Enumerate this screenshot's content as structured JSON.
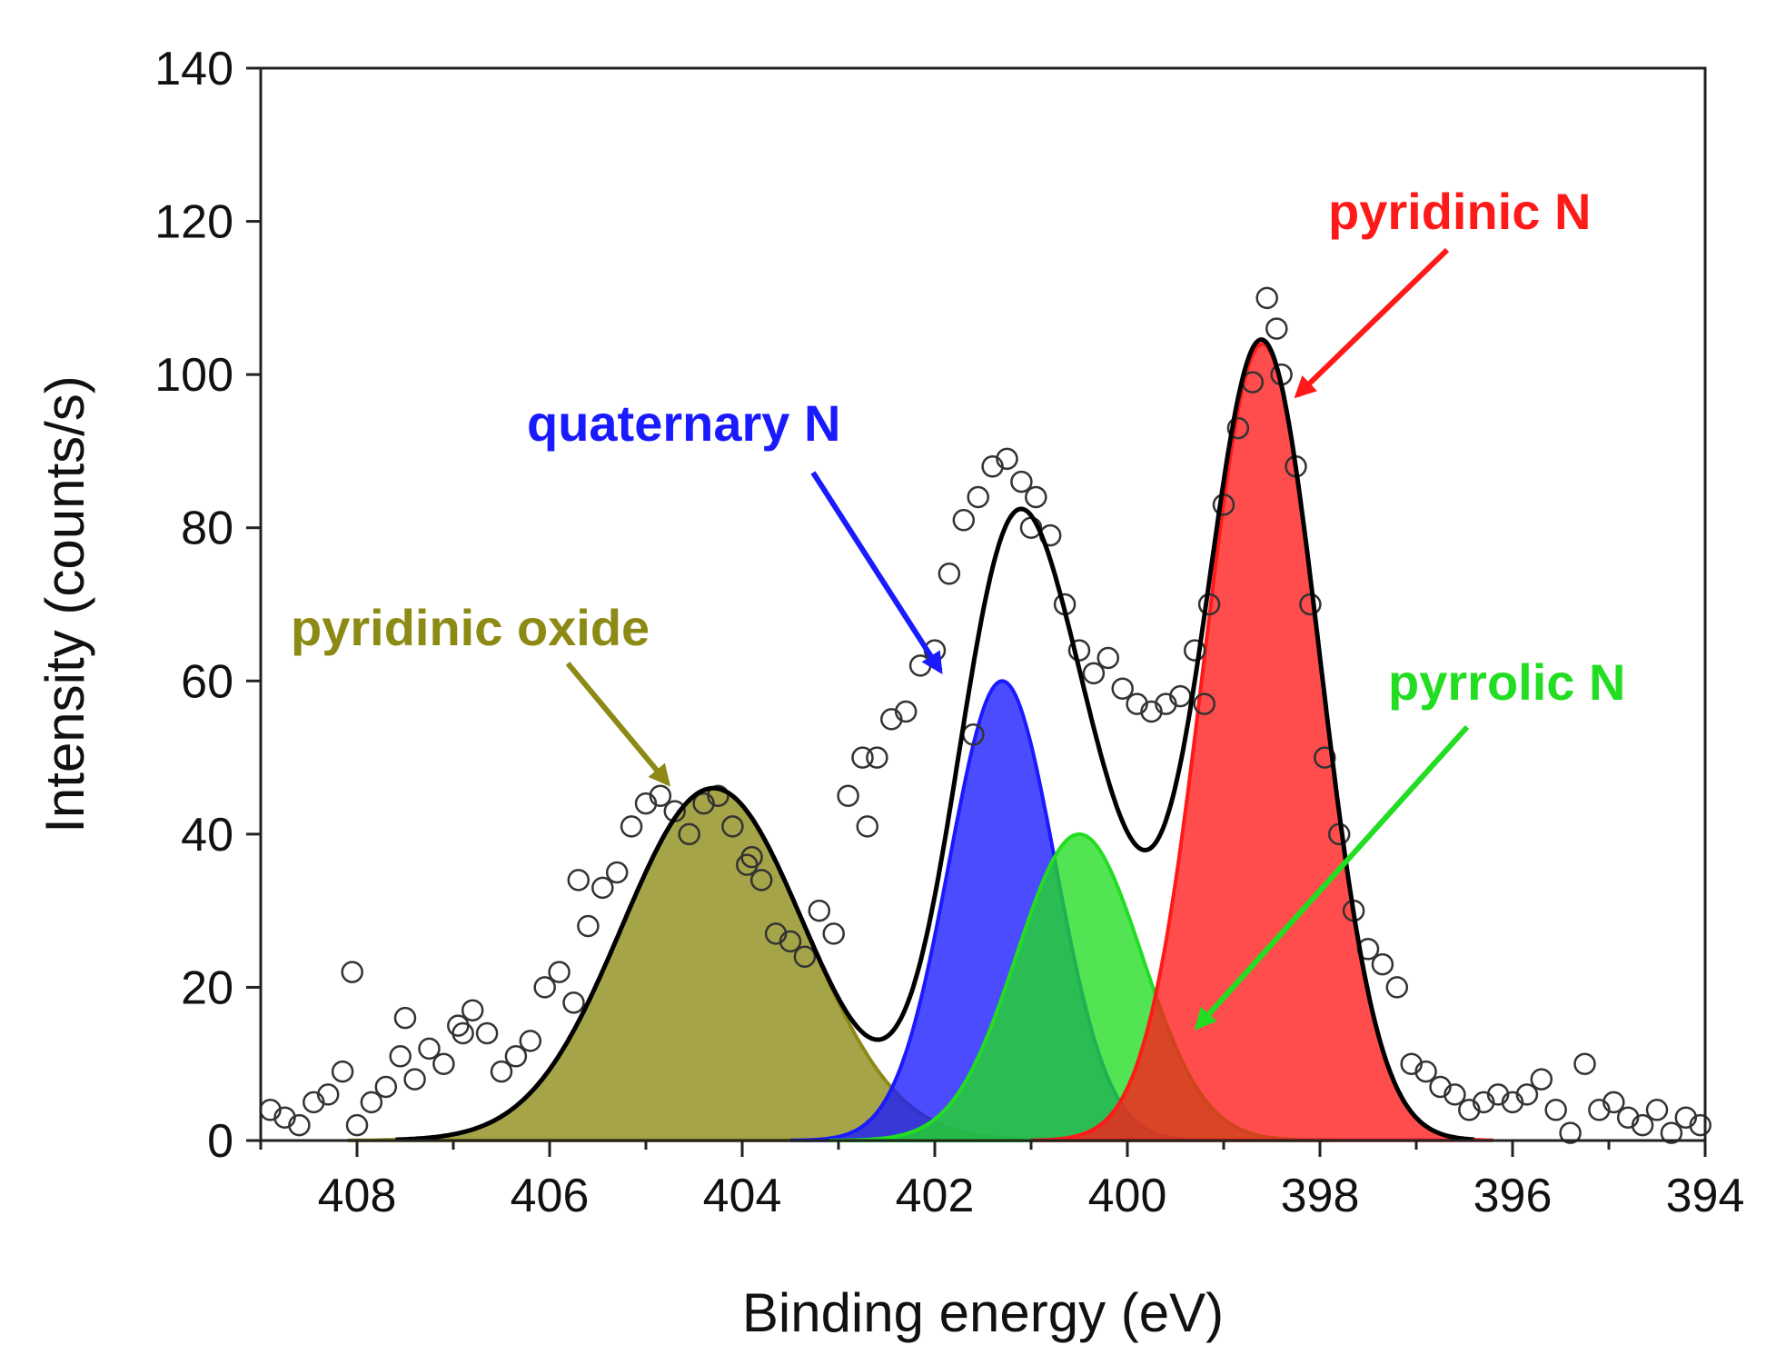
{
  "chart_data": {
    "type": "scatter",
    "title": "",
    "xlabel": "Binding energy (eV)",
    "ylabel": "Intensity (counts/s)",
    "xlim": [
      409,
      394
    ],
    "ylim": [
      0,
      140
    ],
    "x_ticks": [
      408,
      406,
      404,
      402,
      400,
      398,
      396,
      394
    ],
    "y_ticks": [
      0,
      20,
      40,
      60,
      80,
      100,
      120,
      140
    ],
    "grid": false,
    "components": [
      {
        "name": "pyridinic oxide",
        "center": 404.3,
        "amplitude": 46,
        "sigma": 0.95,
        "color": "#8c8a14"
      },
      {
        "name": "quaternary N",
        "center": 401.3,
        "amplitude": 60,
        "sigma": 0.55,
        "color": "#1a1aff"
      },
      {
        "name": "pyrrolic N",
        "center": 400.5,
        "amplitude": 40,
        "sigma": 0.65,
        "color": "#22dd22"
      },
      {
        "name": "pyridinic N",
        "center": 398.6,
        "amplitude": 104,
        "sigma": 0.6,
        "color": "#ff1a1a"
      }
    ],
    "envelope": {
      "name": "fit",
      "color": "#000000"
    },
    "measured": {
      "name": "data",
      "x": [
        408.9,
        408.75,
        408.6,
        408.45,
        408.3,
        408.15,
        408.0,
        407.85,
        407.7,
        407.55,
        407.4,
        407.25,
        407.1,
        406.95,
        406.8,
        406.65,
        406.5,
        406.35,
        406.2,
        406.05,
        405.9,
        405.75,
        405.6,
        405.45,
        405.3,
        405.15,
        405.0,
        404.85,
        404.7,
        404.55,
        404.4,
        404.25,
        404.1,
        403.95,
        403.8,
        403.65,
        403.5,
        403.35,
        403.2,
        403.05,
        402.9,
        402.75,
        402.6,
        402.45,
        402.3,
        402.15,
        402.0,
        401.85,
        401.7,
        401.55,
        401.4,
        401.25,
        401.1,
        400.95,
        400.8,
        400.65,
        400.5,
        400.35,
        400.2,
        400.05,
        399.9,
        399.75,
        399.6,
        399.45,
        399.3,
        399.15,
        399.0,
        398.85,
        398.7,
        398.55,
        398.4,
        398.25,
        398.1,
        397.95,
        397.8,
        397.65,
        397.5,
        397.35,
        397.2,
        397.05,
        396.9,
        396.75,
        396.6,
        396.45,
        396.3,
        396.15,
        396.0,
        395.85,
        395.7,
        395.55,
        395.4,
        395.25,
        395.1,
        394.95,
        394.8,
        394.65,
        394.5,
        394.35,
        394.2,
        394.05,
        408.05,
        407.5,
        406.9,
        405.7,
        403.9,
        402.7,
        401.6,
        401.0,
        399.2,
        398.45
      ],
      "y": [
        4,
        3,
        2,
        5,
        6,
        9,
        2,
        5,
        7,
        11,
        8,
        12,
        10,
        15,
        17,
        14,
        9,
        11,
        13,
        20,
        22,
        18,
        28,
        33,
        35,
        41,
        44,
        45,
        43,
        40,
        44,
        45,
        41,
        36,
        34,
        27,
        26,
        24,
        30,
        27,
        45,
        50,
        50,
        55,
        56,
        62,
        64,
        74,
        81,
        84,
        88,
        89,
        86,
        84,
        79,
        70,
        64,
        61,
        63,
        59,
        57,
        56,
        57,
        58,
        64,
        70,
        83,
        93,
        99,
        110,
        100,
        88,
        70,
        50,
        40,
        30,
        25,
        23,
        20,
        10,
        9,
        7,
        6,
        4,
        5,
        6,
        5,
        6,
        8,
        4,
        1,
        10,
        4,
        5,
        3,
        2,
        4,
        1,
        3,
        2,
        22,
        16,
        14,
        34,
        37,
        41,
        53,
        80,
        57,
        106
      ]
    },
    "annotations": [
      {
        "text": "pyridinic oxide",
        "color": "#8c8a14"
      },
      {
        "text": "quaternary N",
        "color": "#1a1aff"
      },
      {
        "text": "pyrrolic N",
        "color": "#22dd22"
      },
      {
        "text": "pyridinic N",
        "color": "#ff1a1a"
      }
    ]
  }
}
